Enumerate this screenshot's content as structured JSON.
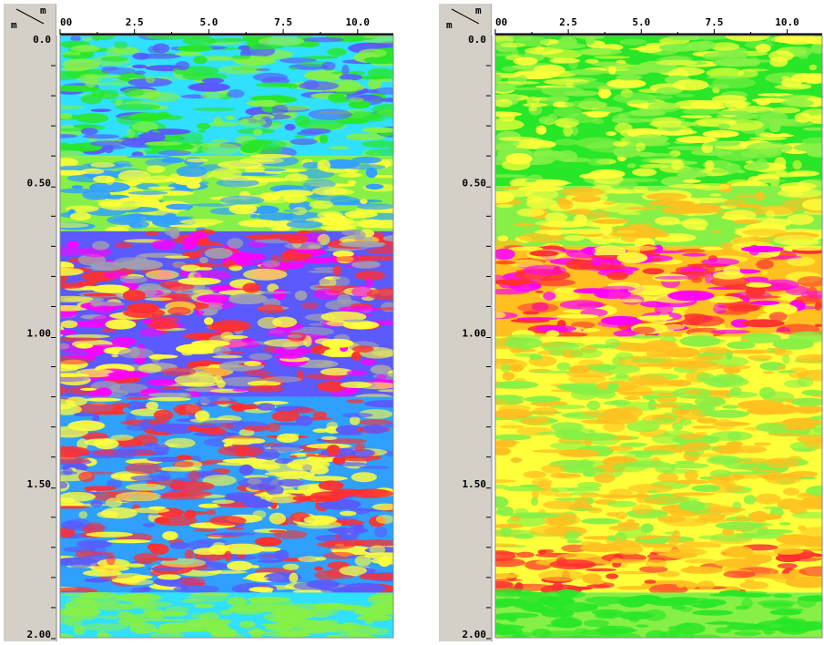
{
  "chart_data": [
    {
      "type": "heatmap",
      "panel": "left",
      "corner_label_x": "m",
      "corner_label_y": "m",
      "x_ticks": [
        {
          "value": 0,
          "label": "00"
        },
        {
          "value": 2.5,
          "label": "2.5"
        },
        {
          "value": 5.0,
          "label": "5.0"
        },
        {
          "value": 7.5,
          "label": "7.5"
        },
        {
          "value": 10.0,
          "label": "10.0"
        }
      ],
      "y_ticks": [
        {
          "value": 0.0,
          "label": "0.0"
        },
        {
          "value": 0.5,
          "label": "0.50"
        },
        {
          "value": 1.0,
          "label": "1.00"
        },
        {
          "value": 1.5,
          "label": "1.50"
        },
        {
          "value": 2.0,
          "label": "2.00"
        }
      ],
      "xlim": [
        0,
        11.2
      ],
      "ylim": [
        0,
        2.0
      ],
      "y_inverted": true,
      "grid": false,
      "colormap": [
        "#28e628",
        "#86f046",
        "#ffff3a",
        "#ffc020",
        "#ff3030",
        "#ff00ff",
        "#101040",
        "#a0a0b0",
        "#5a5aff",
        "#30a0ff",
        "#30e0ff"
      ],
      "bands": [
        {
          "depth": [
            0.0,
            0.4
          ],
          "dominant": "#30e0ff",
          "mix": [
            "#28e628",
            "#86f046",
            "#5a5aff"
          ]
        },
        {
          "depth": [
            0.4,
            0.65
          ],
          "dominant": "#86f046",
          "mix": [
            "#ffff3a",
            "#30a0ff"
          ]
        },
        {
          "depth": [
            0.65,
            1.2
          ],
          "dominant": "#5a5aff",
          "mix": [
            "#ff3030",
            "#ffff3a",
            "#a0a0b0",
            "#ff00ff"
          ]
        },
        {
          "depth": [
            1.2,
            1.85
          ],
          "dominant": "#30a0ff",
          "mix": [
            "#ffff3a",
            "#5a5aff",
            "#ff3030"
          ]
        },
        {
          "depth": [
            1.85,
            2.0
          ],
          "dominant": "#30e0ff",
          "mix": [
            "#86f046"
          ]
        }
      ]
    },
    {
      "type": "heatmap",
      "panel": "right",
      "corner_label_x": "m",
      "corner_label_y": "m",
      "x_ticks": [
        {
          "value": 0,
          "label": "00"
        },
        {
          "value": 2.5,
          "label": "2.5"
        },
        {
          "value": 5.0,
          "label": "5.0"
        },
        {
          "value": 7.5,
          "label": "7.5"
        },
        {
          "value": 10.0,
          "label": "10.0"
        }
      ],
      "y_ticks": [
        {
          "value": 0.0,
          "label": "0.0"
        },
        {
          "value": 0.5,
          "label": "0.50"
        },
        {
          "value": 1.0,
          "label": "1.00"
        },
        {
          "value": 1.5,
          "label": "1.50"
        },
        {
          "value": 2.0,
          "label": "2.00"
        }
      ],
      "xlim": [
        0,
        11.2
      ],
      "ylim": [
        0,
        2.0
      ],
      "y_inverted": true,
      "grid": false,
      "colormap": [
        "#28e628",
        "#86f046",
        "#ffff3a",
        "#ffc020",
        "#ff3030",
        "#ff00ff",
        "#101040"
      ],
      "bands": [
        {
          "depth": [
            0.0,
            0.5
          ],
          "dominant": "#28e628",
          "mix": [
            "#86f046",
            "#ffff3a"
          ]
        },
        {
          "depth": [
            0.5,
            0.7
          ],
          "dominant": "#86f046",
          "mix": [
            "#ffff3a",
            "#ffc020"
          ]
        },
        {
          "depth": [
            0.7,
            1.0
          ],
          "dominant": "#ffc020",
          "mix": [
            "#ff3030",
            "#ff00ff",
            "#ffff3a"
          ]
        },
        {
          "depth": [
            1.0,
            1.7
          ],
          "dominant": "#ffff3a",
          "mix": [
            "#86f046",
            "#ffc020"
          ]
        },
        {
          "depth": [
            1.7,
            1.85
          ],
          "dominant": "#ffff3a",
          "mix": [
            "#ff3030",
            "#ffc020"
          ]
        },
        {
          "depth": [
            1.85,
            2.0
          ],
          "dominant": "#86f046",
          "mix": [
            "#28e628"
          ]
        }
      ]
    }
  ]
}
